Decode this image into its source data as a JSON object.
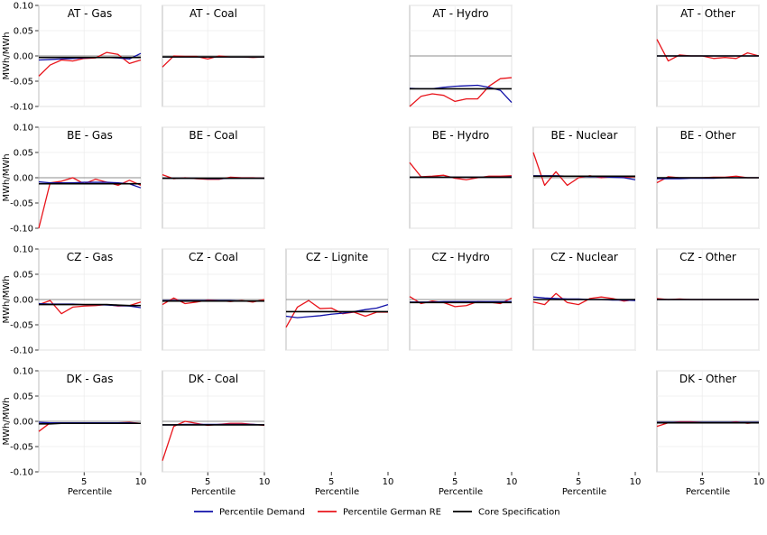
{
  "chart_data": {
    "type": "line",
    "ylabel": "MWh/MWh",
    "xlabel": "Percentile",
    "ylim": [
      -0.1,
      0.1
    ],
    "xlim": [
      1,
      10
    ],
    "yticks": [
      "0.10",
      "0.05",
      "0.00",
      "-0.05",
      "-0.10"
    ],
    "xticks": [
      "5",
      "10"
    ],
    "grid": true,
    "legend_position": "bottom-center",
    "legend": [
      {
        "name": "Percentile Demand",
        "color": "#1010a8"
      },
      {
        "name": "Percentile German RE",
        "color": "#e8141b"
      },
      {
        "name": "Core Specification",
        "color": "#000000"
      }
    ],
    "x": [
      1,
      2,
      3,
      4,
      5,
      6,
      7,
      8,
      9,
      10
    ],
    "panels": [
      {
        "title": "AT - Gas",
        "row": 0,
        "col": 0,
        "demand": [
          -0.008,
          -0.007,
          -0.006,
          -0.005,
          -0.004,
          -0.003,
          -0.003,
          -0.004,
          -0.006,
          0.005
        ],
        "re": [
          -0.04,
          -0.018,
          -0.008,
          -0.01,
          -0.005,
          -0.004,
          0.007,
          0.003,
          -0.015,
          -0.008
        ],
        "core": [
          -0.003,
          -0.003,
          -0.003,
          -0.003,
          -0.003,
          -0.003,
          -0.003,
          -0.003,
          -0.003,
          -0.003
        ]
      },
      {
        "title": "AT - Coal",
        "row": 0,
        "col": 1,
        "demand": [
          -0.002,
          -0.002,
          -0.002,
          -0.002,
          -0.002,
          -0.002,
          -0.002,
          -0.002,
          -0.002,
          -0.002
        ],
        "re": [
          -0.022,
          0.0,
          -0.001,
          -0.001,
          -0.006,
          0.0,
          -0.002,
          -0.002,
          -0.003,
          -0.002
        ],
        "core": [
          -0.002,
          -0.002,
          -0.002,
          -0.002,
          -0.002,
          -0.002,
          -0.002,
          -0.002,
          -0.002,
          -0.002
        ]
      },
      {
        "title": "AT - Hydro",
        "row": 0,
        "col": 3,
        "demand": [
          -0.064,
          -0.065,
          -0.065,
          -0.062,
          -0.06,
          -0.059,
          -0.058,
          -0.062,
          -0.068,
          -0.092
        ],
        "re": [
          -0.1,
          -0.08,
          -0.075,
          -0.078,
          -0.09,
          -0.085,
          -0.085,
          -0.06,
          -0.045,
          -0.043
        ],
        "core": [
          -0.065,
          -0.065,
          -0.065,
          -0.065,
          -0.065,
          -0.065,
          -0.065,
          -0.065,
          -0.065,
          -0.065
        ]
      },
      {
        "title": "AT - Other",
        "row": 0,
        "col": 5,
        "demand": [
          0.0,
          0.0,
          0.0,
          0.0,
          0.0,
          0.0,
          0.0,
          0.0,
          0.0,
          0.0
        ],
        "re": [
          0.033,
          -0.01,
          0.002,
          0.0,
          0.0,
          -0.005,
          -0.003,
          -0.005,
          0.006,
          0.0
        ],
        "core": [
          0.0,
          0.0,
          0.0,
          0.0,
          0.0,
          0.0,
          0.0,
          0.0,
          0.0,
          0.0
        ]
      },
      {
        "title": "BE - Gas",
        "row": 1,
        "col": 0,
        "demand": [
          -0.008,
          -0.01,
          -0.01,
          -0.01,
          -0.009,
          -0.009,
          -0.009,
          -0.01,
          -0.012,
          -0.02
        ],
        "re": [
          -0.1,
          -0.01,
          -0.007,
          0.0,
          -0.012,
          -0.003,
          -0.009,
          -0.015,
          -0.005,
          -0.015
        ],
        "core": [
          -0.012,
          -0.012,
          -0.012,
          -0.012,
          -0.012,
          -0.012,
          -0.012,
          -0.012,
          -0.012,
          -0.012
        ]
      },
      {
        "title": "BE - Coal",
        "row": 1,
        "col": 1,
        "demand": [
          -0.001,
          -0.001,
          -0.001,
          -0.001,
          -0.002,
          -0.002,
          -0.001,
          -0.001,
          -0.001,
          -0.001
        ],
        "re": [
          0.006,
          -0.002,
          0.0,
          -0.002,
          -0.003,
          -0.003,
          0.001,
          0.0,
          0.0,
          -0.001
        ],
        "core": [
          -0.001,
          -0.001,
          -0.001,
          -0.001,
          -0.001,
          -0.001,
          -0.001,
          -0.001,
          -0.001,
          -0.001
        ]
      },
      {
        "title": "BE - Hydro",
        "row": 1,
        "col": 3,
        "demand": [
          0.001,
          0.001,
          0.001,
          0.001,
          0.001,
          0.001,
          0.001,
          0.001,
          0.001,
          0.002
        ],
        "re": [
          0.03,
          0.002,
          0.003,
          0.005,
          -0.001,
          -0.004,
          0.0,
          0.003,
          0.003,
          0.004
        ],
        "core": [
          0.001,
          0.001,
          0.001,
          0.001,
          0.001,
          0.001,
          0.001,
          0.001,
          0.001,
          0.001
        ]
      },
      {
        "title": "BE - Nuclear",
        "row": 1,
        "col": 4,
        "demand": [
          0.004,
          0.004,
          0.004,
          0.003,
          0.003,
          0.002,
          0.002,
          0.001,
          0.0,
          -0.004
        ],
        "re": [
          0.05,
          -0.015,
          0.012,
          -0.015,
          0.0,
          0.004,
          0.0,
          0.002,
          0.001,
          0.002
        ],
        "core": [
          0.003,
          0.003,
          0.003,
          0.003,
          0.003,
          0.003,
          0.003,
          0.003,
          0.003,
          0.003
        ]
      },
      {
        "title": "BE - Other",
        "row": 1,
        "col": 5,
        "demand": [
          -0.002,
          -0.002,
          -0.002,
          -0.001,
          -0.001,
          -0.001,
          0.0,
          0.0,
          0.0,
          0.0
        ],
        "re": [
          -0.01,
          0.002,
          0.0,
          0.0,
          0.0,
          0.001,
          0.001,
          0.003,
          0.0,
          0.0
        ],
        "core": [
          0.0,
          0.0,
          0.0,
          0.0,
          0.0,
          0.0,
          0.0,
          0.0,
          0.0,
          0.0
        ]
      },
      {
        "title": "CZ - Gas",
        "row": 2,
        "col": 0,
        "demand": [
          -0.008,
          -0.009,
          -0.009,
          -0.009,
          -0.01,
          -0.01,
          -0.011,
          -0.012,
          -0.013,
          -0.016
        ],
        "re": [
          -0.01,
          -0.002,
          -0.028,
          -0.015,
          -0.013,
          -0.012,
          -0.01,
          -0.013,
          -0.012,
          -0.005
        ],
        "core": [
          -0.01,
          -0.01,
          -0.01,
          -0.01,
          -0.01,
          -0.01,
          -0.01,
          -0.011,
          -0.012,
          -0.012
        ]
      },
      {
        "title": "CZ - Coal",
        "row": 2,
        "col": 1,
        "demand": [
          -0.002,
          -0.002,
          -0.002,
          -0.002,
          -0.002,
          -0.002,
          -0.002,
          -0.003,
          -0.003,
          -0.003
        ],
        "re": [
          -0.01,
          0.003,
          -0.008,
          -0.005,
          -0.001,
          -0.002,
          -0.004,
          -0.002,
          -0.005,
          0.0
        ],
        "core": [
          -0.003,
          -0.003,
          -0.003,
          -0.003,
          -0.003,
          -0.003,
          -0.003,
          -0.003,
          -0.003,
          -0.003
        ]
      },
      {
        "title": "CZ - Lignite",
        "row": 2,
        "col": 2,
        "demand": [
          -0.033,
          -0.036,
          -0.034,
          -0.032,
          -0.029,
          -0.027,
          -0.024,
          -0.02,
          -0.017,
          -0.01
        ],
        "re": [
          -0.055,
          -0.015,
          -0.002,
          -0.018,
          -0.017,
          -0.028,
          -0.025,
          -0.033,
          -0.025,
          -0.025
        ],
        "core": [
          -0.024,
          -0.024,
          -0.024,
          -0.024,
          -0.024,
          -0.024,
          -0.024,
          -0.024,
          -0.024,
          -0.024
        ]
      },
      {
        "title": "CZ - Hydro",
        "row": 2,
        "col": 3,
        "demand": [
          -0.005,
          -0.005,
          -0.005,
          -0.004,
          -0.004,
          -0.004,
          -0.004,
          -0.004,
          -0.004,
          -0.004
        ],
        "re": [
          0.006,
          -0.008,
          -0.003,
          -0.006,
          -0.014,
          -0.012,
          -0.004,
          -0.005,
          -0.008,
          0.003
        ],
        "core": [
          -0.006,
          -0.006,
          -0.006,
          -0.006,
          -0.006,
          -0.006,
          -0.006,
          -0.006,
          -0.006,
          -0.006
        ]
      },
      {
        "title": "CZ - Nuclear",
        "row": 2,
        "col": 4,
        "demand": [
          0.005,
          0.003,
          0.002,
          0.001,
          0.001,
          0.0,
          0.0,
          -0.001,
          -0.001,
          -0.002
        ],
        "re": [
          -0.005,
          -0.01,
          0.012,
          -0.006,
          -0.01,
          0.002,
          0.005,
          0.002,
          -0.003,
          0.0
        ],
        "core": [
          0.0,
          0.0,
          0.0,
          0.0,
          0.0,
          0.0,
          0.0,
          0.0,
          0.0,
          0.0
        ]
      },
      {
        "title": "CZ - Other",
        "row": 2,
        "col": 5,
        "demand": [
          0.0,
          0.0,
          0.0,
          0.0,
          0.0,
          0.0,
          0.0,
          0.0,
          0.0,
          0.0
        ],
        "re": [
          0.002,
          0.0,
          0.001,
          0.0,
          0.0,
          0.0,
          0.0,
          0.0,
          0.0,
          0.0
        ],
        "core": [
          0.0,
          0.0,
          0.0,
          0.0,
          0.0,
          0.0,
          0.0,
          0.0,
          0.0,
          0.0
        ]
      },
      {
        "title": "DK - Gas",
        "row": 3,
        "col": 0,
        "demand": [
          -0.002,
          -0.003,
          -0.003,
          -0.003,
          -0.003,
          -0.003,
          -0.003,
          -0.003,
          -0.003,
          -0.004
        ],
        "re": [
          -0.02,
          -0.003,
          -0.004,
          -0.003,
          -0.003,
          -0.003,
          -0.004,
          -0.003,
          -0.002,
          -0.004
        ],
        "core": [
          -0.005,
          -0.005,
          -0.004,
          -0.004,
          -0.004,
          -0.004,
          -0.004,
          -0.004,
          -0.004,
          -0.004
        ]
      },
      {
        "title": "DK - Coal",
        "row": 3,
        "col": 1,
        "demand": [
          -0.007,
          -0.007,
          -0.006,
          -0.006,
          -0.006,
          -0.006,
          -0.006,
          -0.006,
          -0.006,
          -0.007
        ],
        "re": [
          -0.078,
          -0.01,
          0.0,
          -0.004,
          -0.008,
          -0.006,
          -0.004,
          -0.004,
          -0.006,
          -0.008
        ],
        "core": [
          -0.007,
          -0.007,
          -0.007,
          -0.007,
          -0.007,
          -0.007,
          -0.007,
          -0.007,
          -0.007,
          -0.007
        ]
      },
      {
        "title": "DK - Other",
        "row": 3,
        "col": 5,
        "demand": [
          -0.002,
          -0.002,
          -0.002,
          -0.002,
          -0.002,
          -0.002,
          -0.002,
          -0.002,
          -0.002,
          -0.002
        ],
        "re": [
          -0.01,
          -0.003,
          -0.001,
          -0.001,
          -0.002,
          -0.003,
          -0.003,
          -0.001,
          -0.004,
          -0.002
        ],
        "core": [
          -0.003,
          -0.003,
          -0.003,
          -0.003,
          -0.003,
          -0.003,
          -0.003,
          -0.003,
          -0.003,
          -0.003
        ]
      }
    ]
  }
}
